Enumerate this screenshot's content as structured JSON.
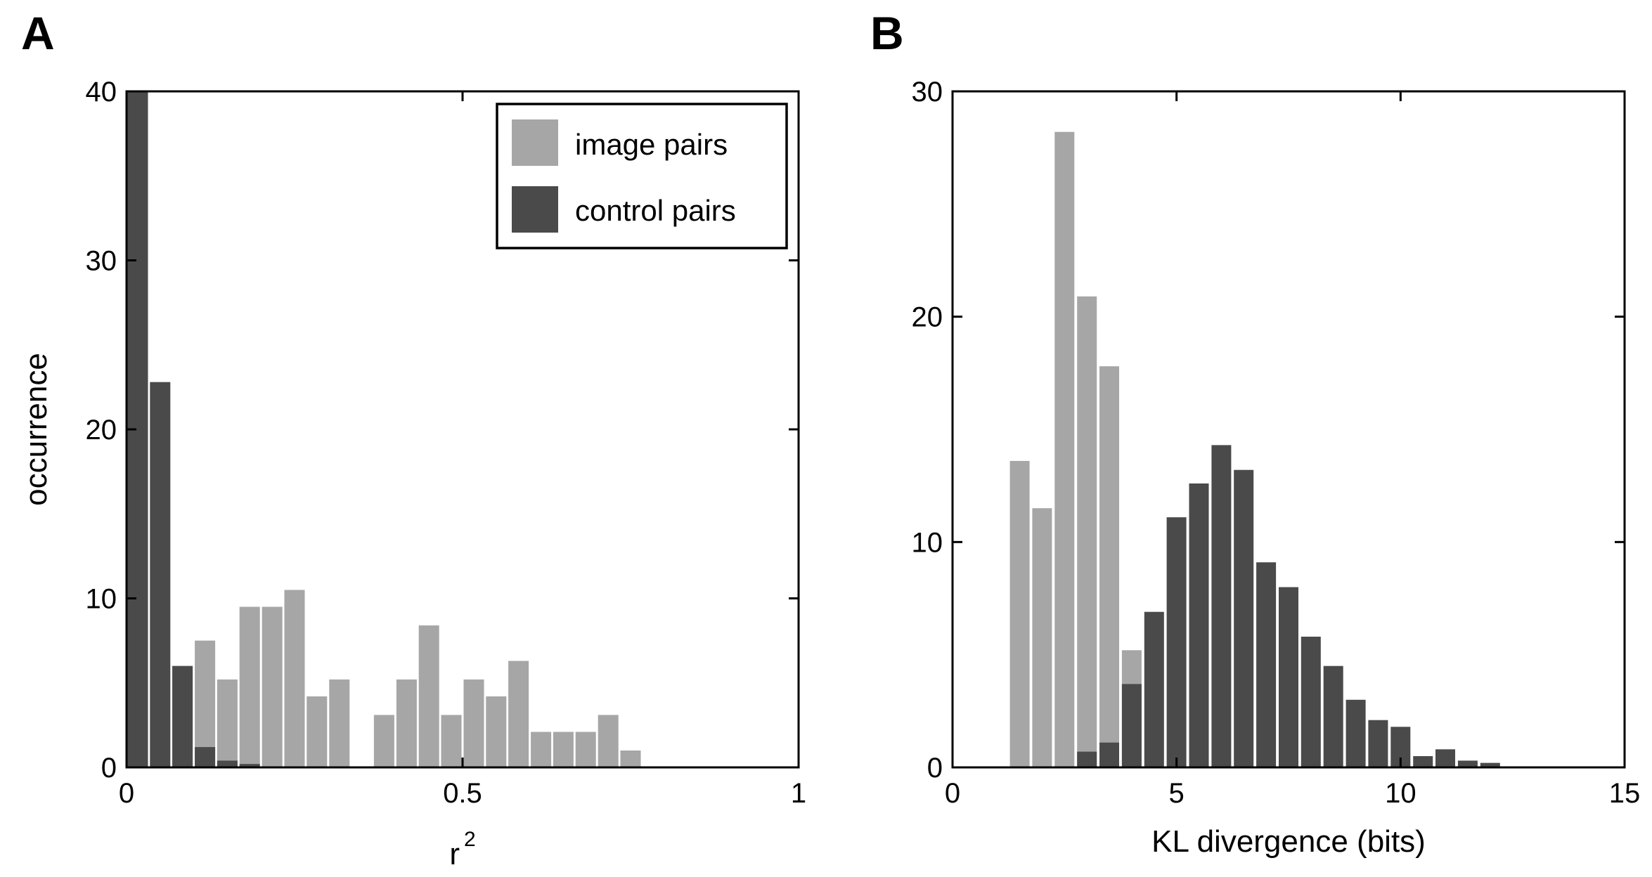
{
  "panels": [
    {
      "id": "A",
      "letter": "A"
    },
    {
      "id": "B",
      "letter": "B"
    }
  ],
  "legend": [
    {
      "label": "image pairs",
      "color": "#a6a6a6"
    },
    {
      "label": "control pairs",
      "color": "#4a4a4a"
    }
  ],
  "colors": {
    "image": "#a6a6a6",
    "control": "#4a4a4a",
    "axis": "#000000"
  },
  "chart_data": [
    {
      "panel": "A",
      "type": "bar",
      "xlabel": "r",
      "xlabel_superscript": "2",
      "ylabel": "occurrence",
      "xlim": [
        0,
        1
      ],
      "ylim": [
        0,
        40
      ],
      "xticks": [
        0,
        0.5,
        1
      ],
      "xtick_labels": [
        "0",
        "0.5",
        "1"
      ],
      "yticks": [
        0,
        10,
        20,
        30,
        40
      ],
      "ytick_labels": [
        "0",
        "10",
        "20",
        "30",
        "40"
      ],
      "bin_width": 0.0333,
      "legend_position": "top-right",
      "series": [
        {
          "name": "image pairs",
          "bins": [
            0.0167,
            0.05,
            0.0833,
            0.1167,
            0.15,
            0.1833,
            0.2167,
            0.25,
            0.2833,
            0.3167,
            0.35,
            0.3833,
            0.4167,
            0.45,
            0.4833,
            0.5167,
            0.55,
            0.5833,
            0.6167,
            0.65,
            0.6833,
            0.7167,
            0.75
          ],
          "values": [
            0,
            0,
            6,
            7.5,
            5.2,
            9.5,
            9.5,
            10.5,
            4.2,
            5.2,
            0,
            3.1,
            5.2,
            8.4,
            3.1,
            5.2,
            4.2,
            6.3,
            2.1,
            2.1,
            2.1,
            3.1,
            1
          ]
        },
        {
          "name": "control pairs",
          "bins": [
            0.0167,
            0.05,
            0.0833,
            0.1167,
            0.15,
            0.1833
          ],
          "values": [
            40,
            22.8,
            6,
            1.2,
            0.4,
            0.2
          ]
        }
      ]
    },
    {
      "panel": "B",
      "type": "bar",
      "xlabel": "KL divergence (bits)",
      "ylabel": "",
      "xlim": [
        0,
        15
      ],
      "ylim": [
        0,
        30
      ],
      "xticks": [
        0,
        5,
        10,
        15
      ],
      "xtick_labels": [
        "0",
        "5",
        "10",
        "15"
      ],
      "yticks": [
        0,
        10,
        20,
        30
      ],
      "ytick_labels": [
        "0",
        "10",
        "20",
        "30"
      ],
      "bin_width": 0.5,
      "series": [
        {
          "name": "image pairs",
          "bins": [
            1.5,
            2.0,
            2.5,
            3.0,
            3.5,
            4.0
          ],
          "values": [
            13.6,
            11.5,
            28.2,
            20.9,
            17.8,
            5.2
          ]
        },
        {
          "name": "control pairs",
          "bins": [
            3.0,
            3.5,
            4.0,
            4.5,
            5.0,
            5.5,
            6.0,
            6.5,
            7.0,
            7.5,
            8.0,
            8.5,
            9.0,
            9.5,
            10.0,
            10.5,
            11.0,
            11.5,
            12.0
          ],
          "values": [
            0.7,
            1.1,
            3.7,
            6.9,
            11.1,
            12.6,
            14.3,
            13.2,
            9.1,
            8.0,
            5.8,
            4.5,
            3.0,
            2.1,
            1.8,
            0.5,
            0.8,
            0.3,
            0.2
          ]
        }
      ]
    }
  ]
}
